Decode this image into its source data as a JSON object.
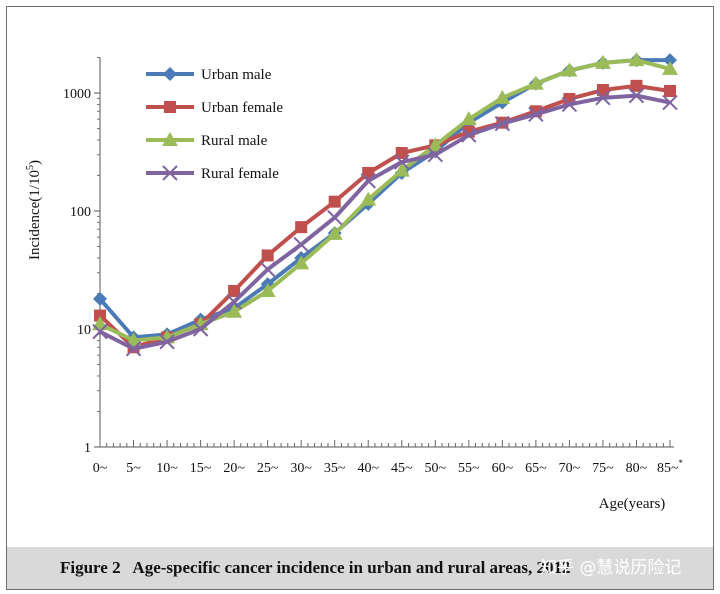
{
  "chart_data": {
    "type": "line",
    "title": "",
    "xlabel": "Age(years)",
    "ylabel_main": "Incidence(1/10",
    "ylabel_sup": "5",
    "ylabel_end": ")",
    "y_scale": "log",
    "ylim": [
      1,
      2000
    ],
    "y_ticks": [
      1,
      10,
      100,
      1000
    ],
    "y_tick_labels": [
      "1",
      "10",
      "100",
      "1000"
    ],
    "legend_position": "top-left",
    "grid": false,
    "categories": [
      "0~",
      "5~",
      "10~",
      "15~",
      "20~",
      "25~",
      "30~",
      "35~",
      "40~",
      "45~",
      "50~",
      "55~",
      "60~",
      "65~",
      "70~",
      "75~",
      "80~",
      "85~"
    ],
    "categories_note": [
      {
        "index": 17,
        "superscript": "*"
      }
    ],
    "series": [
      {
        "name": "Urban male",
        "color": "#4a7bb7",
        "marker": "diamond",
        "values": [
          18,
          8.5,
          9,
          12,
          15,
          24,
          40,
          65,
          115,
          210,
          320,
          560,
          830,
          1200,
          1550,
          1800,
          1900,
          1900
        ]
      },
      {
        "name": "Urban female",
        "color": "#c0504d",
        "marker": "square",
        "values": [
          13,
          7,
          8.5,
          11,
          21,
          42,
          73,
          120,
          210,
          310,
          360,
          470,
          560,
          700,
          890,
          1060,
          1150,
          1040
        ]
      },
      {
        "name": "Rural male",
        "color": "#9bbb59",
        "marker": "triangle",
        "values": [
          11,
          8,
          8.5,
          11,
          14,
          21,
          36,
          64,
          125,
          220,
          360,
          600,
          910,
          1200,
          1550,
          1800,
          1900,
          1600
        ]
      },
      {
        "name": "Rural female",
        "color": "#7f64a0",
        "marker": "x",
        "values": [
          9.5,
          6.8,
          7.8,
          10,
          17,
          32,
          52,
          88,
          180,
          260,
          300,
          440,
          550,
          660,
          800,
          910,
          950,
          830
        ]
      }
    ]
  },
  "caption": {
    "label": "Figure 2",
    "text": "Age-specific cancer incidence in urban and rural areas, 2012"
  },
  "watermark": "知乎 @慧说历险记"
}
